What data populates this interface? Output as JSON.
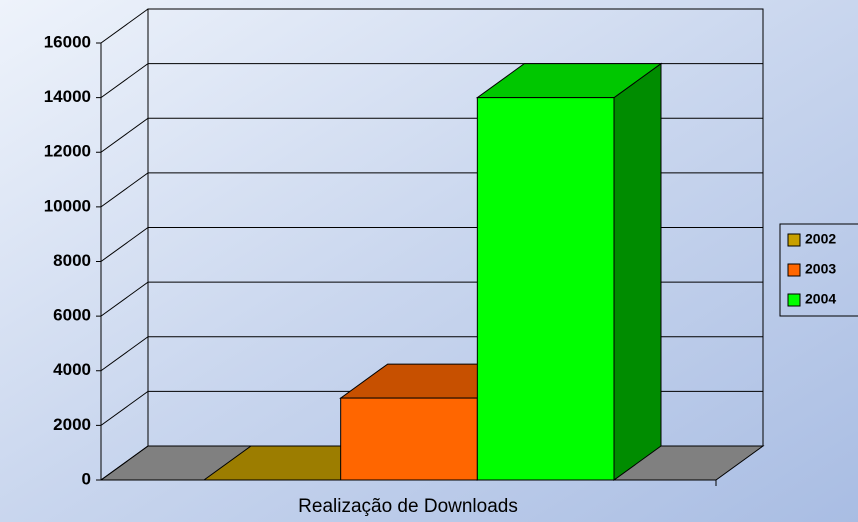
{
  "chart_data": {
    "type": "bar3d",
    "x_label": "Realização de Downloads",
    "categories": [
      "Realização de Downloads"
    ],
    "series": [
      {
        "name": "2002",
        "color": "#c8a000",
        "values": [
          0
        ]
      },
      {
        "name": "2003",
        "color": "#ff6600",
        "values": [
          3000
        ]
      },
      {
        "name": "2004",
        "color": "#00ff00",
        "values": [
          14000
        ]
      }
    ],
    "ylim": [
      0,
      16000
    ],
    "yticks": [
      0,
      2000,
      4000,
      6000,
      8000,
      10000,
      12000,
      14000,
      16000
    ],
    "grid": true,
    "legend": "right"
  }
}
